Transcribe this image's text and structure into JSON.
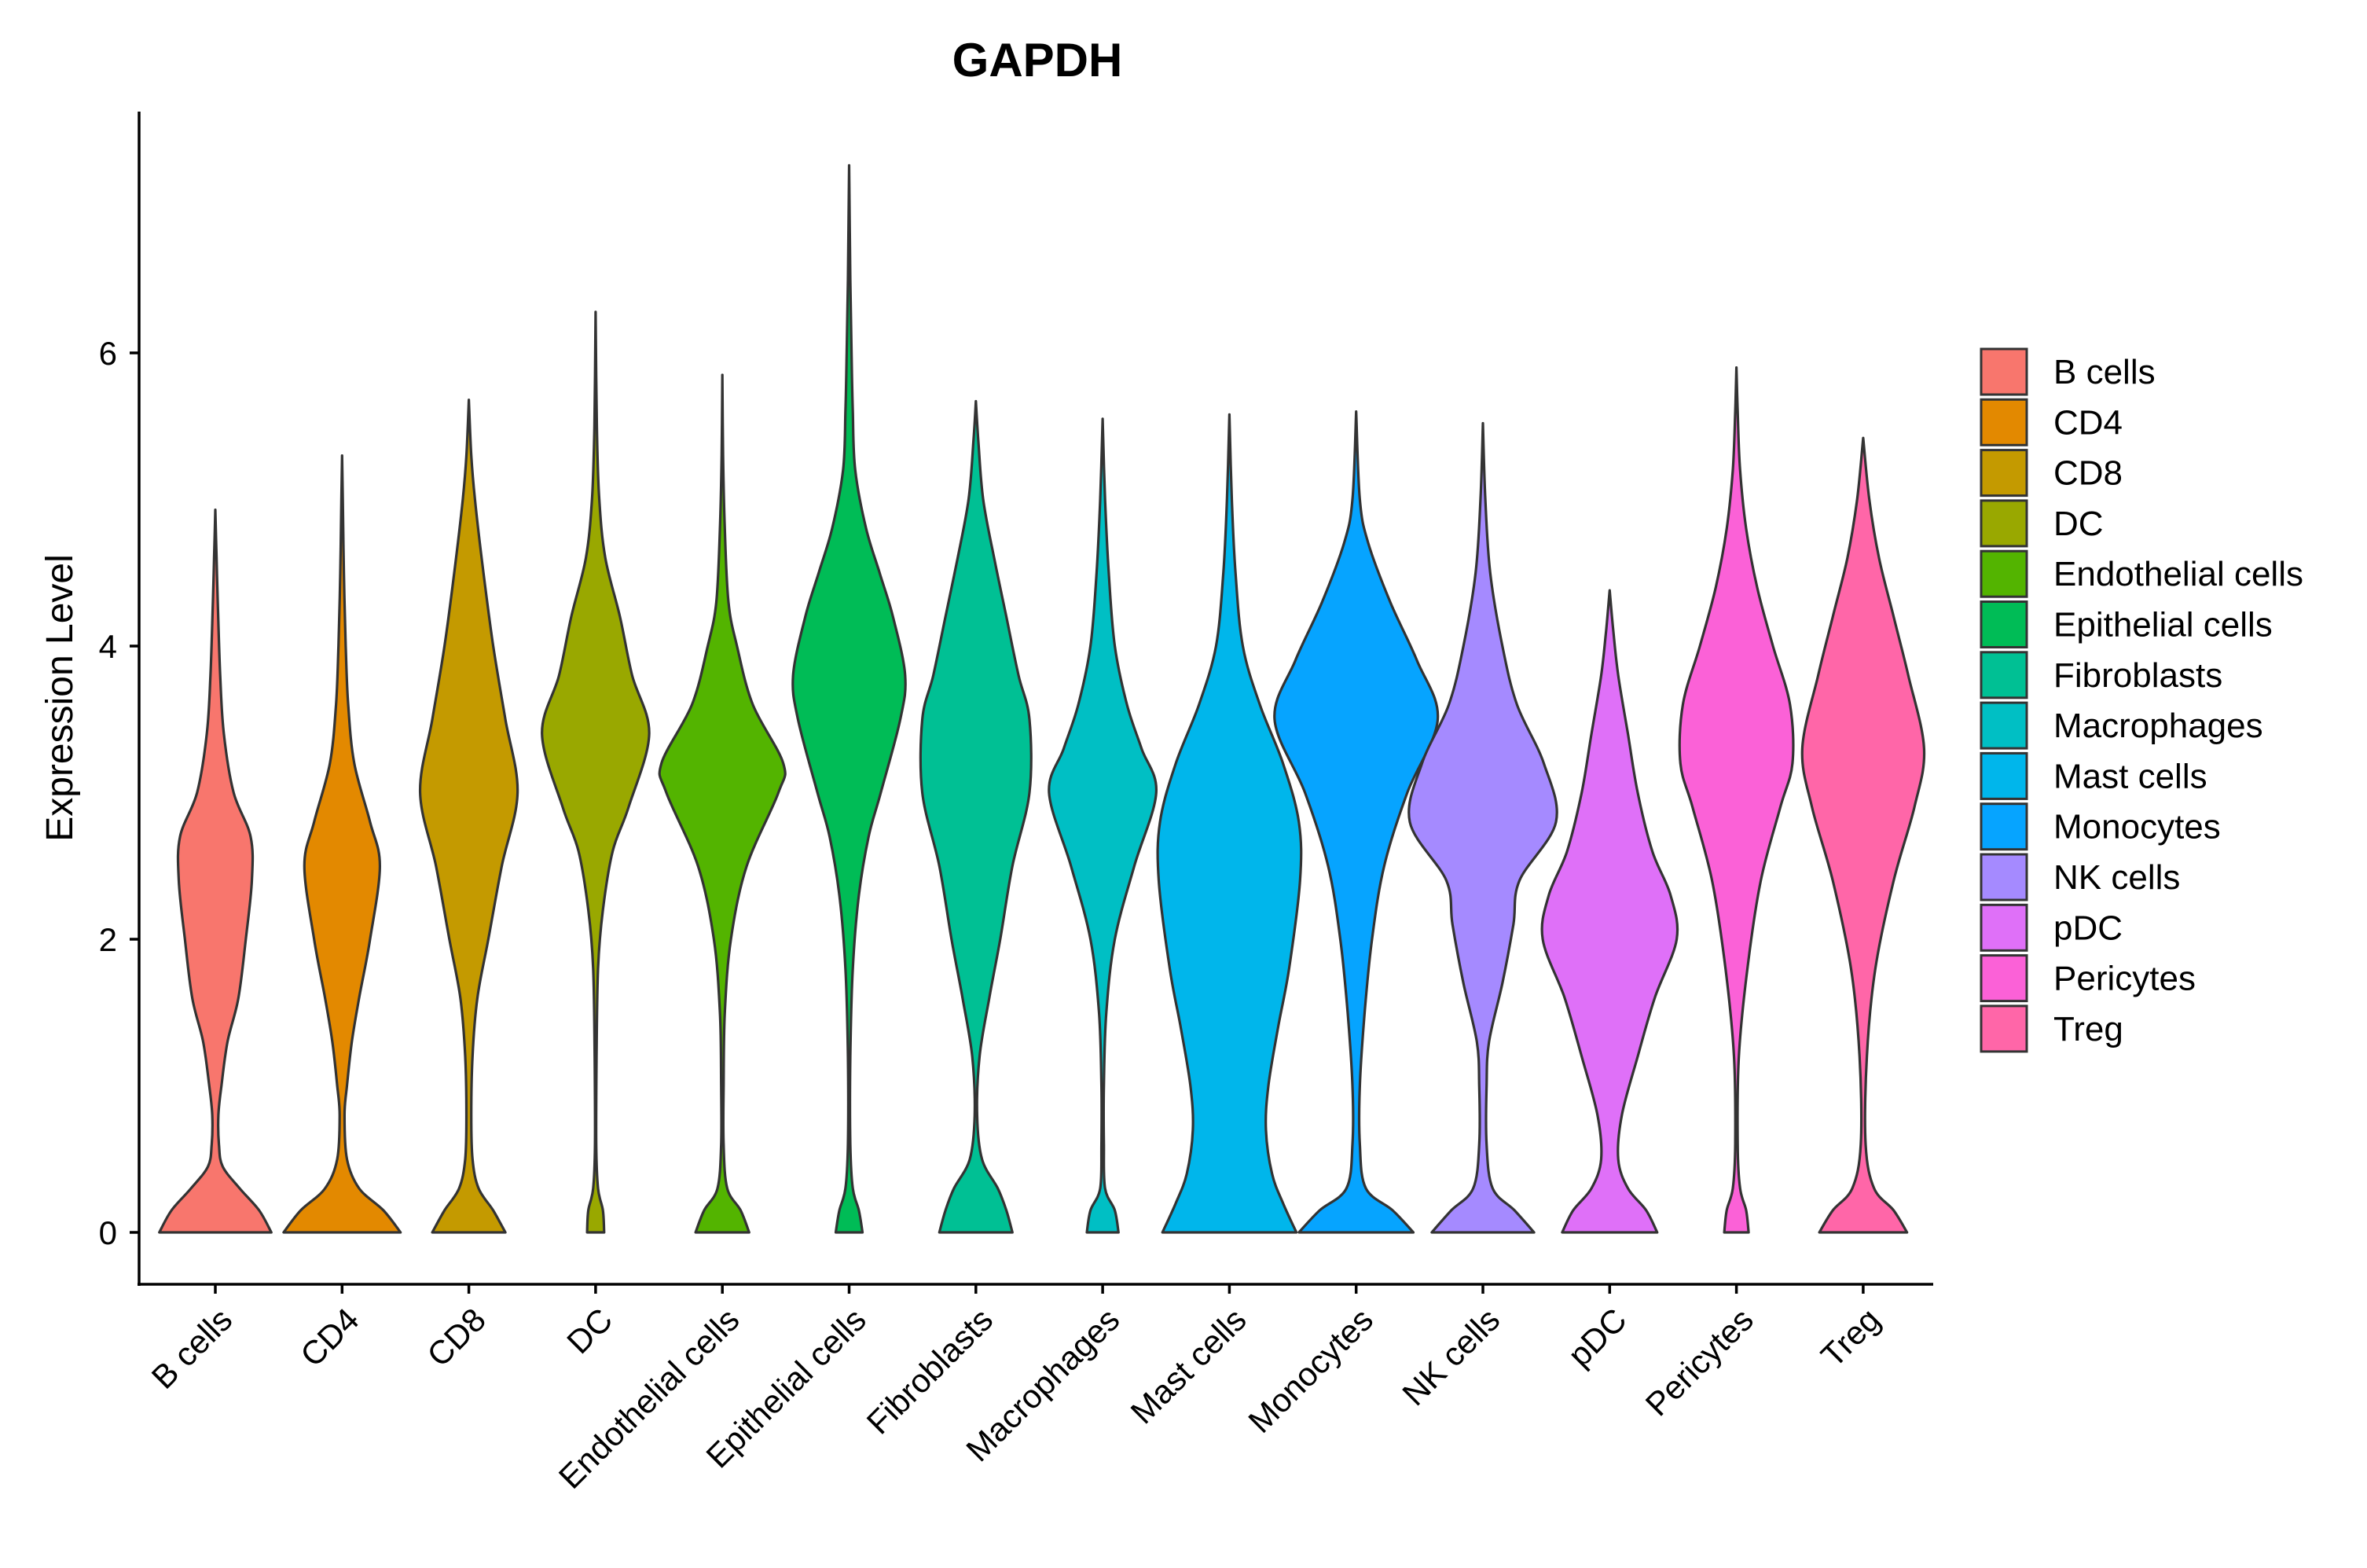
{
  "chart_data": {
    "type": "violin",
    "title": "GAPDH",
    "xlabel": "",
    "ylabel": "Expression Level",
    "ylim": [
      -0.35,
      7.6
    ],
    "yticks": [
      0,
      2,
      4,
      6
    ],
    "grid": false,
    "legend_position": "right",
    "categories": [
      "B cells",
      "CD4",
      "CD8",
      "DC",
      "Endothelial cells",
      "Epithelial cells",
      "Fibroblasts",
      "Macrophages",
      "Mast cells",
      "Monocytes",
      "NK cells",
      "pDC",
      "Pericytes",
      "Treg"
    ],
    "series": [
      {
        "name": "B cells",
        "color": "#F8766D",
        "max": 4.93,
        "shape": [
          [
            0,
            0.46
          ],
          [
            0.15,
            0.36
          ],
          [
            0.3,
            0.2
          ],
          [
            0.45,
            0.06
          ],
          [
            0.6,
            0.03
          ],
          [
            0.8,
            0.025
          ],
          [
            1.0,
            0.05
          ],
          [
            1.3,
            0.1
          ],
          [
            1.6,
            0.19
          ],
          [
            2.0,
            0.25
          ],
          [
            2.4,
            0.3
          ],
          [
            2.7,
            0.29
          ],
          [
            3.0,
            0.15
          ],
          [
            3.4,
            0.07
          ],
          [
            3.8,
            0.04
          ],
          [
            4.3,
            0.02
          ],
          [
            4.6,
            0.01
          ],
          [
            4.93,
            0
          ]
        ]
      },
      {
        "name": "CD4",
        "color": "#E38900",
        "max": 5.3,
        "shape": [
          [
            0,
            0.48
          ],
          [
            0.15,
            0.34
          ],
          [
            0.3,
            0.14
          ],
          [
            0.5,
            0.04
          ],
          [
            0.8,
            0.02
          ],
          [
            1.0,
            0.04
          ],
          [
            1.3,
            0.08
          ],
          [
            1.6,
            0.14
          ],
          [
            2.0,
            0.23
          ],
          [
            2.5,
            0.31
          ],
          [
            2.8,
            0.23
          ],
          [
            3.2,
            0.1
          ],
          [
            3.6,
            0.05
          ],
          [
            4.0,
            0.03
          ],
          [
            4.5,
            0.015
          ],
          [
            5.0,
            0.006
          ],
          [
            5.3,
            0
          ]
        ]
      },
      {
        "name": "CD8",
        "color": "#C49A00",
        "max": 5.68,
        "shape": [
          [
            0,
            0.3
          ],
          [
            0.15,
            0.2
          ],
          [
            0.3,
            0.08
          ],
          [
            0.5,
            0.03
          ],
          [
            0.8,
            0.02
          ],
          [
            1.2,
            0.03
          ],
          [
            1.6,
            0.07
          ],
          [
            2.0,
            0.16
          ],
          [
            2.5,
            0.27
          ],
          [
            3.0,
            0.4
          ],
          [
            3.5,
            0.3
          ],
          [
            4.0,
            0.2
          ],
          [
            4.5,
            0.12
          ],
          [
            5.0,
            0.05
          ],
          [
            5.3,
            0.02
          ],
          [
            5.68,
            0
          ]
        ]
      },
      {
        "name": "DC",
        "color": "#99A800",
        "max": 6.28,
        "shape": [
          [
            0,
            0.07
          ],
          [
            0.15,
            0.06
          ],
          [
            0.3,
            0.02
          ],
          [
            0.6,
            0.005
          ],
          [
            1.2,
            0.008
          ],
          [
            1.8,
            0.02
          ],
          [
            2.2,
            0.06
          ],
          [
            2.6,
            0.14
          ],
          [
            2.9,
            0.27
          ],
          [
            3.4,
            0.44
          ],
          [
            3.8,
            0.3
          ],
          [
            4.2,
            0.2
          ],
          [
            4.6,
            0.08
          ],
          [
            5.0,
            0.03
          ],
          [
            5.5,
            0.01
          ],
          [
            6.28,
            0
          ]
        ]
      },
      {
        "name": "Endothelial cells",
        "color": "#53B400",
        "max": 5.85,
        "shape": [
          [
            0,
            0.22
          ],
          [
            0.15,
            0.15
          ],
          [
            0.3,
            0.04
          ],
          [
            0.6,
            0.01
          ],
          [
            1.0,
            0.01
          ],
          [
            1.5,
            0.02
          ],
          [
            2.0,
            0.07
          ],
          [
            2.5,
            0.2
          ],
          [
            3.0,
            0.46
          ],
          [
            3.2,
            0.5
          ],
          [
            3.6,
            0.25
          ],
          [
            4.0,
            0.12
          ],
          [
            4.3,
            0.05
          ],
          [
            4.8,
            0.02
          ],
          [
            5.3,
            0.006
          ],
          [
            5.85,
            0
          ]
        ]
      },
      {
        "name": "Epithelial cells",
        "color": "#00BC56",
        "max": 7.28,
        "shape": [
          [
            0,
            0.11
          ],
          [
            0.15,
            0.08
          ],
          [
            0.3,
            0.03
          ],
          [
            0.6,
            0.01
          ],
          [
            1.2,
            0.01
          ],
          [
            1.8,
            0.03
          ],
          [
            2.3,
            0.08
          ],
          [
            2.7,
            0.16
          ],
          [
            3.0,
            0.26
          ],
          [
            3.5,
            0.42
          ],
          [
            3.8,
            0.46
          ],
          [
            4.2,
            0.36
          ],
          [
            4.5,
            0.25
          ],
          [
            4.8,
            0.14
          ],
          [
            5.2,
            0.05
          ],
          [
            5.6,
            0.03
          ],
          [
            6.0,
            0.02
          ],
          [
            6.5,
            0.01
          ],
          [
            7.28,
            0
          ]
        ]
      },
      {
        "name": "Fibroblasts",
        "color": "#00C094",
        "max": 5.67,
        "shape": [
          [
            0,
            0.3
          ],
          [
            0.15,
            0.25
          ],
          [
            0.3,
            0.18
          ],
          [
            0.5,
            0.05
          ],
          [
            0.8,
            0.01
          ],
          [
            1.2,
            0.03
          ],
          [
            1.6,
            0.11
          ],
          [
            2.0,
            0.2
          ],
          [
            2.5,
            0.3
          ],
          [
            3.0,
            0.44
          ],
          [
            3.5,
            0.44
          ],
          [
            3.8,
            0.35
          ],
          [
            4.2,
            0.25
          ],
          [
            4.6,
            0.15
          ],
          [
            5.0,
            0.06
          ],
          [
            5.4,
            0.02
          ],
          [
            5.67,
            0
          ]
        ]
      },
      {
        "name": "Macrophages",
        "color": "#00BFC4",
        "max": 5.55,
        "shape": [
          [
            0,
            0.13
          ],
          [
            0.15,
            0.1
          ],
          [
            0.3,
            0.02
          ],
          [
            0.6,
            0.01
          ],
          [
            1.0,
            0.01
          ],
          [
            1.5,
            0.03
          ],
          [
            2.0,
            0.1
          ],
          [
            2.5,
            0.26
          ],
          [
            3.0,
            0.44
          ],
          [
            3.3,
            0.32
          ],
          [
            3.6,
            0.2
          ],
          [
            4.0,
            0.1
          ],
          [
            4.5,
            0.05
          ],
          [
            5.0,
            0.02
          ],
          [
            5.55,
            0
          ]
        ]
      },
      {
        "name": "Mast cells",
        "color": "#00B6EB",
        "max": 5.58,
        "shape": [
          [
            0,
            0.55
          ],
          [
            0.2,
            0.44
          ],
          [
            0.4,
            0.35
          ],
          [
            0.7,
            0.3
          ],
          [
            1.0,
            0.32
          ],
          [
            1.4,
            0.4
          ],
          [
            1.8,
            0.49
          ],
          [
            2.4,
            0.58
          ],
          [
            2.8,
            0.57
          ],
          [
            3.2,
            0.44
          ],
          [
            3.6,
            0.25
          ],
          [
            4.0,
            0.11
          ],
          [
            4.5,
            0.05
          ],
          [
            5.0,
            0.02
          ],
          [
            5.58,
            0
          ]
        ]
      },
      {
        "name": "Monocytes",
        "color": "#06A4FF",
        "max": 5.6,
        "shape": [
          [
            0,
            0.47
          ],
          [
            0.15,
            0.3
          ],
          [
            0.3,
            0.08
          ],
          [
            0.6,
            0.03
          ],
          [
            1.0,
            0.03
          ],
          [
            1.5,
            0.07
          ],
          [
            2.0,
            0.13
          ],
          [
            2.5,
            0.23
          ],
          [
            3.0,
            0.42
          ],
          [
            3.5,
            0.67
          ],
          [
            3.9,
            0.5
          ],
          [
            4.3,
            0.28
          ],
          [
            4.7,
            0.1
          ],
          [
            5.0,
            0.03
          ],
          [
            5.6,
            0
          ]
        ]
      },
      {
        "name": "NK cells",
        "color": "#A58AFF",
        "max": 5.52,
        "shape": [
          [
            0,
            0.42
          ],
          [
            0.15,
            0.26
          ],
          [
            0.3,
            0.08
          ],
          [
            0.6,
            0.03
          ],
          [
            1.0,
            0.03
          ],
          [
            1.3,
            0.05
          ],
          [
            1.7,
            0.16
          ],
          [
            2.1,
            0.25
          ],
          [
            2.4,
            0.3
          ],
          [
            2.8,
            0.6
          ],
          [
            3.2,
            0.5
          ],
          [
            3.6,
            0.28
          ],
          [
            4.0,
            0.16
          ],
          [
            4.5,
            0.06
          ],
          [
            5.0,
            0.02
          ],
          [
            5.52,
            0
          ]
        ]
      },
      {
        "name": "pDC",
        "color": "#DF70F8",
        "max": 4.38,
        "shape": [
          [
            0,
            0.39
          ],
          [
            0.15,
            0.3
          ],
          [
            0.3,
            0.15
          ],
          [
            0.5,
            0.07
          ],
          [
            0.8,
            0.1
          ],
          [
            1.2,
            0.23
          ],
          [
            1.6,
            0.37
          ],
          [
            2.0,
            0.55
          ],
          [
            2.3,
            0.5
          ],
          [
            2.6,
            0.35
          ],
          [
            3.0,
            0.23
          ],
          [
            3.4,
            0.15
          ],
          [
            3.8,
            0.07
          ],
          [
            4.1,
            0.03
          ],
          [
            4.38,
            0
          ]
        ]
      },
      {
        "name": "Pericytes",
        "color": "#FB61D7",
        "max": 5.9,
        "shape": [
          [
            0,
            0.1
          ],
          [
            0.15,
            0.08
          ],
          [
            0.3,
            0.03
          ],
          [
            0.6,
            0.01
          ],
          [
            1.2,
            0.02
          ],
          [
            1.8,
            0.09
          ],
          [
            2.4,
            0.2
          ],
          [
            2.9,
            0.36
          ],
          [
            3.2,
            0.46
          ],
          [
            3.6,
            0.44
          ],
          [
            4.0,
            0.3
          ],
          [
            4.4,
            0.17
          ],
          [
            4.8,
            0.08
          ],
          [
            5.2,
            0.03
          ],
          [
            5.6,
            0.01
          ],
          [
            5.9,
            0
          ]
        ]
      },
      {
        "name": "Treg",
        "color": "#FF66A8",
        "max": 5.42,
        "shape": [
          [
            0,
            0.36
          ],
          [
            0.15,
            0.25
          ],
          [
            0.3,
            0.09
          ],
          [
            0.6,
            0.02
          ],
          [
            1.2,
            0.03
          ],
          [
            1.8,
            0.1
          ],
          [
            2.4,
            0.25
          ],
          [
            2.9,
            0.42
          ],
          [
            3.3,
            0.5
          ],
          [
            3.8,
            0.37
          ],
          [
            4.2,
            0.25
          ],
          [
            4.6,
            0.13
          ],
          [
            5.0,
            0.05
          ],
          [
            5.42,
            0
          ]
        ]
      }
    ]
  }
}
